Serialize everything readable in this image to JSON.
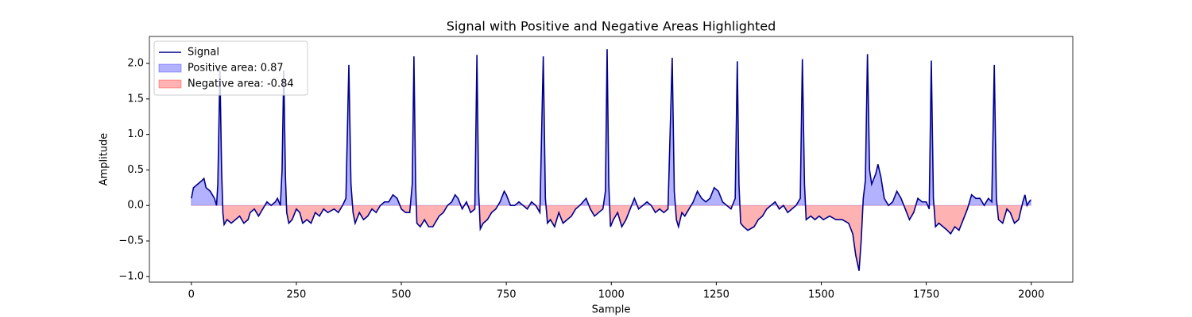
{
  "chart_data": {
    "type": "line",
    "title": "Signal with Positive and Negative Areas Highlighted",
    "x_label": "Sample",
    "y_label": "Amplitude",
    "x": [
      0,
      5,
      15,
      25,
      30,
      35,
      45,
      55,
      60,
      63,
      68,
      72,
      75,
      78,
      85,
      95,
      105,
      115,
      125,
      135,
      140,
      150,
      160,
      170,
      180,
      190,
      200,
      205,
      212,
      216,
      220,
      224,
      227,
      232,
      240,
      250,
      258,
      265,
      275,
      285,
      295,
      305,
      315,
      325,
      340,
      350,
      360,
      368,
      375,
      380,
      385,
      390,
      400,
      410,
      420,
      430,
      440,
      450,
      460,
      470,
      480,
      490,
      500,
      510,
      520,
      526,
      530,
      534,
      537,
      545,
      555,
      565,
      575,
      590,
      600,
      610,
      620,
      628,
      635,
      645,
      655,
      665,
      675,
      680,
      684,
      688,
      695,
      705,
      715,
      725,
      735,
      745,
      750,
      760,
      770,
      780,
      790,
      800,
      810,
      820,
      830,
      838,
      843,
      848,
      855,
      865,
      875,
      885,
      895,
      905,
      915,
      925,
      940,
      950,
      960,
      970,
      980,
      986,
      990,
      994,
      998,
      1005,
      1015,
      1025,
      1035,
      1045,
      1055,
      1065,
      1075,
      1085,
      1095,
      1105,
      1115,
      1125,
      1135,
      1145,
      1150,
      1155,
      1160,
      1168,
      1175,
      1185,
      1195,
      1205,
      1215,
      1225,
      1235,
      1245,
      1255,
      1265,
      1275,
      1285,
      1295,
      1300,
      1304,
      1308,
      1315,
      1325,
      1340,
      1350,
      1360,
      1370,
      1380,
      1390,
      1400,
      1410,
      1420,
      1430,
      1440,
      1450,
      1455,
      1460,
      1464,
      1475,
      1485,
      1495,
      1505,
      1520,
      1535,
      1550,
      1565,
      1575,
      1582,
      1590,
      1595,
      1600,
      1605,
      1610,
      1615,
      1620,
      1630,
      1635,
      1642,
      1650,
      1660,
      1670,
      1680,
      1690,
      1700,
      1710,
      1720,
      1730,
      1740,
      1750,
      1757,
      1762,
      1767,
      1772,
      1780,
      1790,
      1800,
      1808,
      1818,
      1828,
      1838,
      1848,
      1858,
      1868,
      1878,
      1888,
      1898,
      1906,
      1912,
      1917,
      1922,
      1932,
      1942,
      1950,
      1960,
      1970,
      1980,
      1985,
      1990,
      1995,
      1999
    ],
    "series": [
      {
        "name": "Signal",
        "color": "#00008b",
        "values": [
          0.1,
          0.25,
          0.3,
          0.35,
          0.38,
          0.25,
          0.2,
          0.1,
          0.0,
          0.3,
          1.9,
          0.5,
          -0.1,
          -0.27,
          -0.2,
          -0.25,
          -0.2,
          -0.15,
          -0.25,
          -0.2,
          -0.1,
          -0.05,
          -0.15,
          -0.05,
          0.05,
          0.0,
          0.05,
          0.1,
          0.0,
          0.5,
          1.9,
          0.4,
          -0.1,
          -0.25,
          -0.2,
          -0.05,
          -0.1,
          -0.25,
          -0.2,
          -0.25,
          -0.1,
          -0.15,
          -0.05,
          -0.1,
          -0.05,
          -0.1,
          0.0,
          0.1,
          1.98,
          0.3,
          -0.1,
          -0.25,
          -0.1,
          -0.2,
          -0.15,
          -0.05,
          -0.1,
          0.0,
          0.05,
          0.05,
          0.15,
          0.1,
          -0.05,
          -0.1,
          -0.1,
          0.3,
          2.1,
          0.3,
          -0.25,
          -0.3,
          -0.2,
          -0.3,
          -0.3,
          -0.15,
          -0.1,
          0.0,
          0.05,
          0.15,
          0.1,
          -0.05,
          0.05,
          -0.1,
          -0.05,
          2.12,
          0.2,
          -0.33,
          -0.25,
          -0.2,
          -0.1,
          -0.05,
          0.05,
          0.2,
          0.15,
          0.0,
          0.0,
          0.05,
          0.0,
          -0.05,
          0.05,
          0.0,
          -0.1,
          2.1,
          0.1,
          -0.25,
          -0.2,
          -0.3,
          -0.1,
          -0.25,
          -0.2,
          -0.15,
          -0.05,
          0.0,
          0.1,
          -0.05,
          -0.15,
          -0.1,
          -0.05,
          0.2,
          2.2,
          0.3,
          -0.3,
          -0.2,
          -0.1,
          -0.3,
          -0.2,
          -0.05,
          0.1,
          -0.05,
          0.0,
          0.05,
          0.0,
          -0.1,
          -0.05,
          -0.1,
          -0.05,
          2.08,
          0.2,
          -0.2,
          -0.3,
          -0.1,
          -0.15,
          -0.05,
          0.05,
          0.2,
          0.1,
          0.05,
          0.1,
          0.25,
          0.2,
          0.05,
          0.0,
          -0.05,
          0.1,
          2.03,
          0.3,
          -0.25,
          -0.3,
          -0.35,
          -0.3,
          -0.2,
          -0.15,
          -0.05,
          0.0,
          0.05,
          -0.05,
          0.0,
          -0.1,
          -0.05,
          0.0,
          0.1,
          2.06,
          0.3,
          -0.2,
          -0.15,
          -0.2,
          -0.15,
          -0.2,
          -0.15,
          -0.2,
          -0.2,
          -0.25,
          -0.4,
          -0.7,
          -0.92,
          -0.5,
          0.1,
          0.35,
          2.13,
          0.5,
          0.3,
          0.45,
          0.58,
          0.4,
          0.1,
          0.0,
          0.05,
          0.2,
          0.1,
          -0.05,
          -0.2,
          -0.1,
          0.1,
          0.05,
          0.05,
          -0.05,
          2.04,
          0.1,
          -0.3,
          -0.25,
          -0.3,
          -0.35,
          -0.4,
          -0.3,
          -0.35,
          -0.2,
          -0.05,
          0.15,
          0.1,
          0.1,
          0.0,
          0.1,
          0.05,
          1.98,
          0.1,
          -0.2,
          -0.25,
          -0.05,
          -0.1,
          -0.25,
          -0.2,
          0.05,
          0.15,
          0.0,
          0.05,
          0.08
        ]
      }
    ],
    "fills": [
      {
        "name": "Positive area: 0.87",
        "color": "#0000ff",
        "alpha": 0.3,
        "where": "positive"
      },
      {
        "name": "Negative area: -0.84",
        "color": "#ff0000",
        "alpha": 0.3,
        "where": "negative"
      }
    ],
    "xlim": [
      -99.95,
      2098.95
    ],
    "xticks": [
      0,
      250,
      500,
      750,
      1000,
      1250,
      1500,
      1750,
      2000
    ],
    "ylim": [
      -1.08,
      2.38
    ],
    "yticks": [
      {
        "value": -1.0,
        "label": "−1.0"
      },
      {
        "value": -0.5,
        "label": "−0.5"
      },
      {
        "value": 0.0,
        "label": "0.0"
      },
      {
        "value": 0.5,
        "label": "0.5"
      },
      {
        "value": 1.0,
        "label": "1.0"
      },
      {
        "value": 1.5,
        "label": "1.5"
      },
      {
        "value": 2.0,
        "label": "2.0"
      }
    ],
    "legend": "upper left"
  }
}
